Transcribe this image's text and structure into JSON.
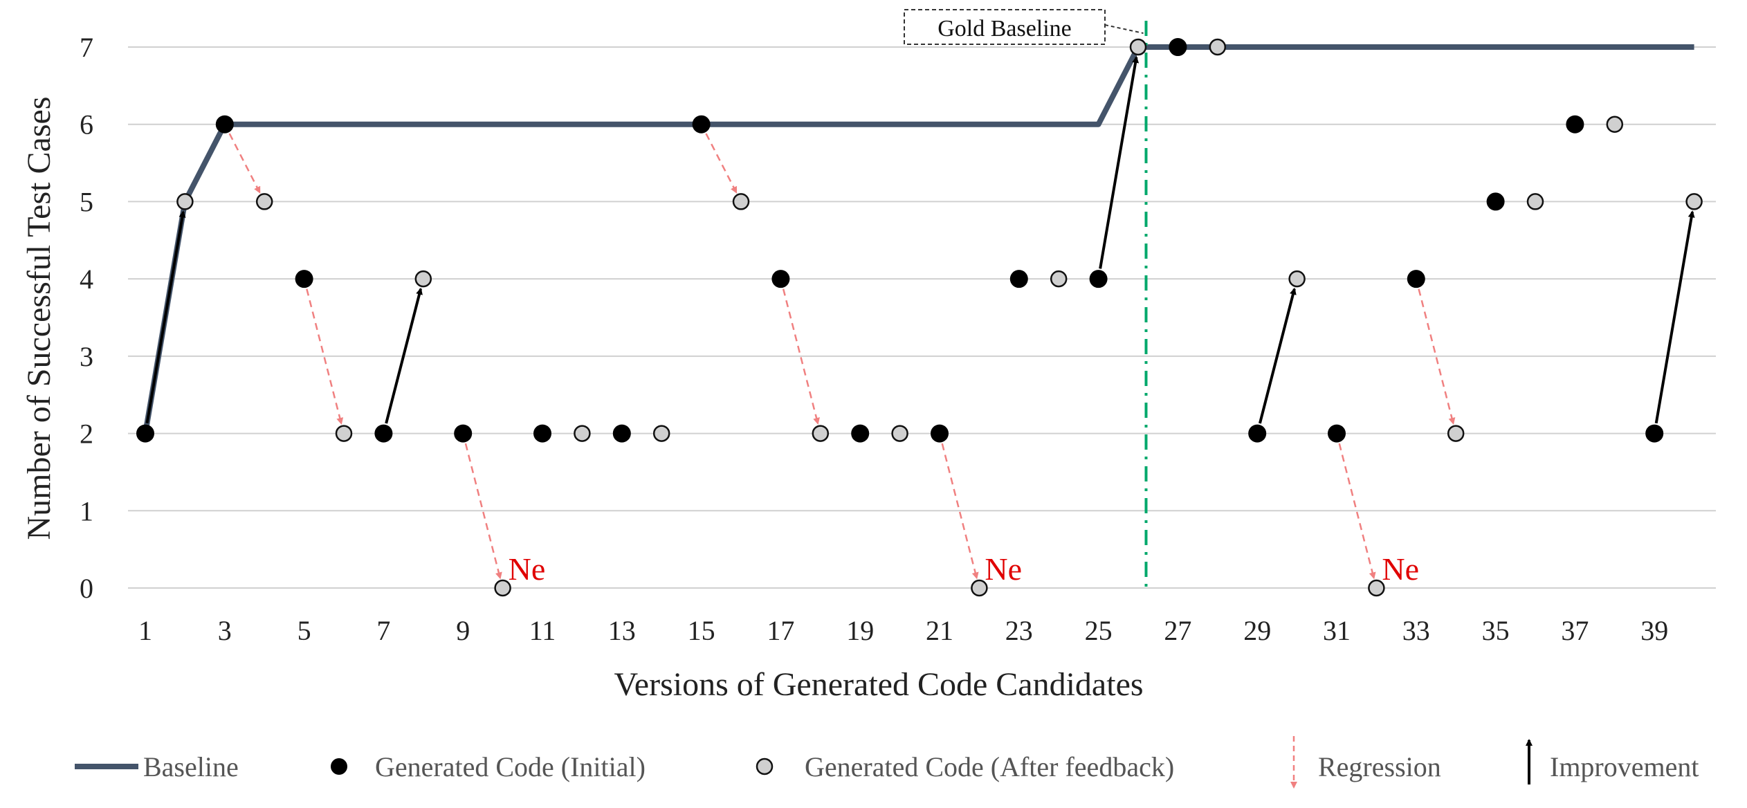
{
  "chart_data": {
    "type": "scatter",
    "xlabel": "Versions of Generated Code Candidates",
    "ylabel": "Number of Successful Test Cases",
    "xlim": [
      1,
      40
    ],
    "ylim": [
      0,
      7
    ],
    "x_ticks": [
      "1",
      "3",
      "5",
      "7",
      "9",
      "11",
      "13",
      "15",
      "17",
      "19",
      "21",
      "23",
      "25",
      "27",
      "29",
      "31",
      "33",
      "35",
      "37",
      "39"
    ],
    "y_ticks": [
      "0",
      "1",
      "2",
      "3",
      "4",
      "5",
      "6",
      "7"
    ],
    "grid": "horizontal",
    "legend_position": "bottom",
    "colors": {
      "baseline": "#44546a",
      "initial": "#000000",
      "after_feedback": "#d0d0d0",
      "regression": "#f08080",
      "improvement": "#000000",
      "gold_line": "#00a86b"
    },
    "baseline": {
      "x": [
        1,
        2,
        3,
        25,
        26,
        40
      ],
      "y": [
        2,
        5,
        6,
        6,
        7,
        7
      ]
    },
    "initial": [
      {
        "x": 1,
        "y": 2
      },
      {
        "x": 3,
        "y": 6
      },
      {
        "x": 5,
        "y": 4
      },
      {
        "x": 7,
        "y": 2
      },
      {
        "x": 9,
        "y": 2
      },
      {
        "x": 11,
        "y": 2
      },
      {
        "x": 13,
        "y": 2
      },
      {
        "x": 15,
        "y": 6
      },
      {
        "x": 17,
        "y": 4
      },
      {
        "x": 19,
        "y": 2
      },
      {
        "x": 21,
        "y": 2
      },
      {
        "x": 23,
        "y": 4
      },
      {
        "x": 25,
        "y": 4
      },
      {
        "x": 27,
        "y": 7
      },
      {
        "x": 29,
        "y": 2
      },
      {
        "x": 31,
        "y": 2
      },
      {
        "x": 33,
        "y": 4
      },
      {
        "x": 35,
        "y": 5
      },
      {
        "x": 37,
        "y": 6
      },
      {
        "x": 39,
        "y": 2
      }
    ],
    "after_feedback": [
      {
        "x": 2,
        "y": 5
      },
      {
        "x": 4,
        "y": 5
      },
      {
        "x": 6,
        "y": 2
      },
      {
        "x": 8,
        "y": 4
      },
      {
        "x": 10,
        "y": 0
      },
      {
        "x": 12,
        "y": 2
      },
      {
        "x": 14,
        "y": 2
      },
      {
        "x": 16,
        "y": 5
      },
      {
        "x": 18,
        "y": 2
      },
      {
        "x": 20,
        "y": 2
      },
      {
        "x": 22,
        "y": 0
      },
      {
        "x": 24,
        "y": 4
      },
      {
        "x": 26,
        "y": 7
      },
      {
        "x": 28,
        "y": 7
      },
      {
        "x": 30,
        "y": 4
      },
      {
        "x": 32,
        "y": 0
      },
      {
        "x": 34,
        "y": 2
      },
      {
        "x": 36,
        "y": 5
      },
      {
        "x": 38,
        "y": 6
      },
      {
        "x": 40,
        "y": 5
      }
    ],
    "regressions": [
      {
        "from": [
          3,
          6
        ],
        "to": [
          4,
          5
        ]
      },
      {
        "from": [
          5,
          4
        ],
        "to": [
          6,
          2
        ]
      },
      {
        "from": [
          9,
          2
        ],
        "to": [
          10,
          0
        ]
      },
      {
        "from": [
          15,
          6
        ],
        "to": [
          16,
          5
        ]
      },
      {
        "from": [
          17,
          4
        ],
        "to": [
          18,
          2
        ]
      },
      {
        "from": [
          21,
          2
        ],
        "to": [
          22,
          0
        ]
      },
      {
        "from": [
          31,
          2
        ],
        "to": [
          32,
          0
        ]
      },
      {
        "from": [
          33,
          4
        ],
        "to": [
          34,
          2
        ]
      }
    ],
    "improvements": [
      {
        "from": [
          1,
          2
        ],
        "to": [
          2,
          5
        ]
      },
      {
        "from": [
          7,
          2
        ],
        "to": [
          8,
          4
        ]
      },
      {
        "from": [
          25,
          4
        ],
        "to": [
          26,
          7
        ]
      },
      {
        "from": [
          29,
          2
        ],
        "to": [
          30,
          4
        ]
      },
      {
        "from": [
          39,
          2
        ],
        "to": [
          40,
          5
        ]
      }
    ],
    "ne_labels": [
      {
        "x": 10,
        "y": 0,
        "text": "Ne"
      },
      {
        "x": 22,
        "y": 0,
        "text": "Ne"
      },
      {
        "x": 32,
        "y": 0,
        "text": "Ne"
      }
    ],
    "gold_baseline": {
      "x": 26.2,
      "label": "Gold Baseline"
    },
    "legend": [
      {
        "key": "baseline",
        "label": "Baseline"
      },
      {
        "key": "initial",
        "label": "Generated Code (Initial)"
      },
      {
        "key": "after_feedback",
        "label": "Generated Code (After feedback)"
      },
      {
        "key": "regression",
        "label": "Regression"
      },
      {
        "key": "improvement",
        "label": "Improvement"
      }
    ]
  }
}
